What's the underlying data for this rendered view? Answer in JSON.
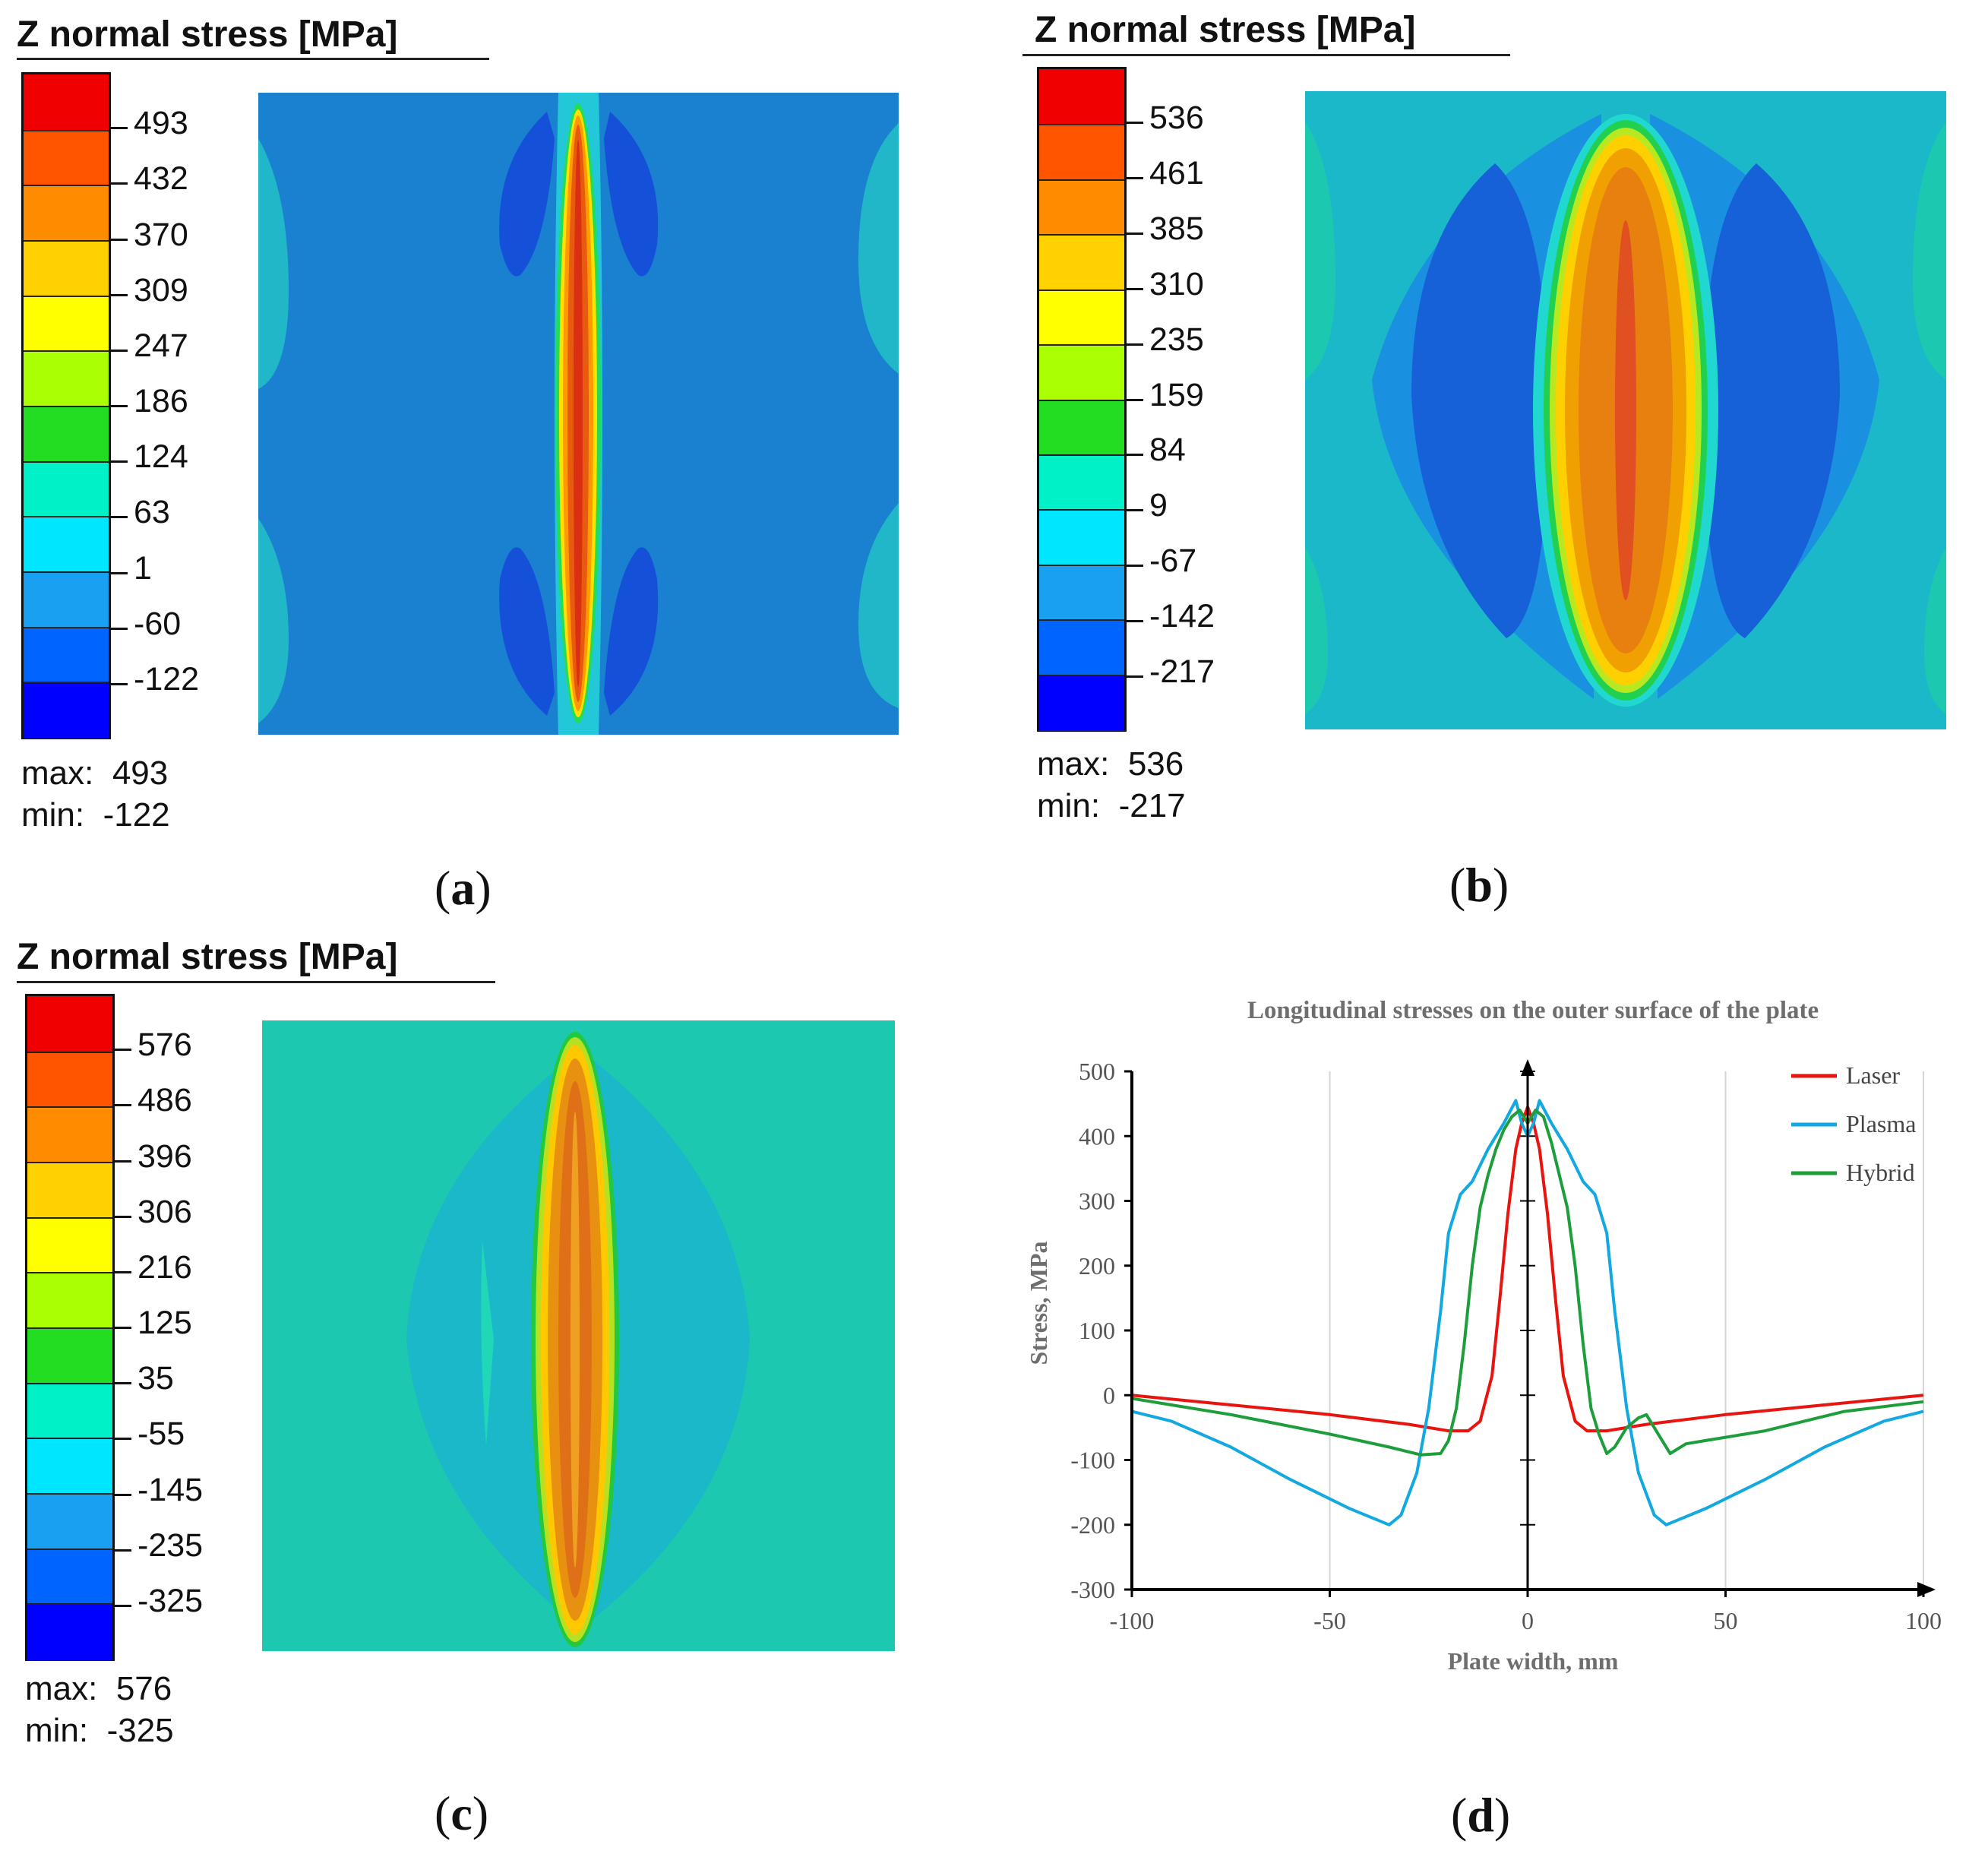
{
  "panels": [
    {
      "id": "a",
      "legend_title": "Z normal stress [MPa]",
      "colorbar_labels": [
        "493",
        "432",
        "370",
        "309",
        "247",
        "186",
        "124",
        "63",
        "1",
        "-60",
        "-122"
      ],
      "max_label": "max:",
      "max_value": "493",
      "min_label": "min:",
      "min_value": "-122",
      "caption": "a"
    },
    {
      "id": "b",
      "legend_title": "Z normal stress [MPa]",
      "colorbar_labels": [
        "536",
        "461",
        "385",
        "310",
        "235",
        "159",
        "84",
        "9",
        "-67",
        "-142",
        "-217"
      ],
      "max_label": "max:",
      "max_value": "536",
      "min_label": "min:",
      "min_value": "-217",
      "caption": "b"
    },
    {
      "id": "c",
      "legend_title": "Z normal stress [MPa]",
      "colorbar_labels": [
        "576",
        "486",
        "396",
        "306",
        "216",
        "125",
        "35",
        "-55",
        "-145",
        "-235",
        "-325"
      ],
      "max_label": "max:",
      "max_value": "576",
      "min_label": "min:",
      "min_value": "-325",
      "caption": "c"
    }
  ],
  "colorbar_colors": [
    "#f00000",
    "#ff5400",
    "#ff8c00",
    "#ffd200",
    "#ffff00",
    "#aaff00",
    "#22dd22",
    "#00f0c8",
    "#00e6ff",
    "#1aa0f0",
    "#0064ff",
    "#0000ff"
  ],
  "caption_d": "d",
  "chart_data": {
    "type": "line",
    "title": "Longitudinal stresses on the outer surface of the plate",
    "xlabel": "Plate width, mm",
    "ylabel": "Stress, MPa",
    "xlim": [
      -100,
      100
    ],
    "ylim": [
      -300,
      500
    ],
    "xticks": [
      -100,
      -50,
      0,
      50,
      100
    ],
    "yticks": [
      -300,
      -200,
      -100,
      0,
      100,
      200,
      300,
      400,
      500
    ],
    "grid": "vertical",
    "legend_position": "top-right",
    "series": [
      {
        "name": "Laser",
        "color": "#e8140f",
        "x": [
          -100,
          -75,
          -50,
          -30,
          -20,
          -15,
          -12,
          -9,
          -7,
          -5,
          -3,
          -1.5,
          0,
          1.5,
          3,
          5,
          7,
          9,
          12,
          15,
          20,
          30,
          50,
          75,
          100
        ],
        "y": [
          0,
          -15,
          -30,
          -45,
          -55,
          -55,
          -40,
          30,
          150,
          280,
          380,
          420,
          445,
          420,
          380,
          280,
          150,
          30,
          -40,
          -55,
          -55,
          -45,
          -30,
          -15,
          0
        ]
      },
      {
        "name": "Plasma",
        "color": "#12a8e0",
        "x": [
          -100,
          -90,
          -75,
          -60,
          -45,
          -35,
          -32,
          -28,
          -25,
          -22,
          -20,
          -17,
          -14,
          -10,
          -6,
          -3,
          -1.5,
          0,
          1.5,
          3,
          6,
          10,
          14,
          17,
          20,
          22,
          25,
          28,
          32,
          35,
          45,
          60,
          75,
          90,
          100
        ],
        "y": [
          -25,
          -40,
          -80,
          -130,
          -175,
          -200,
          -185,
          -120,
          -20,
          130,
          250,
          310,
          330,
          380,
          420,
          455,
          420,
          400,
          420,
          455,
          420,
          380,
          330,
          310,
          250,
          130,
          -20,
          -120,
          -185,
          -200,
          -175,
          -130,
          -80,
          -40,
          -25
        ]
      },
      {
        "name": "Hybrid",
        "color": "#1e9e3a",
        "x": [
          -100,
          -75,
          -50,
          -35,
          -27,
          -22,
          -20,
          -18,
          -16,
          -14,
          -12,
          -10,
          -8,
          -6,
          -4,
          -2,
          0,
          2,
          4,
          6,
          8,
          10,
          12,
          14,
          16,
          18,
          20,
          22,
          25,
          28,
          30,
          33,
          36,
          40,
          45,
          60,
          80,
          100
        ],
        "y": [
          -5,
          -30,
          -60,
          -80,
          -92,
          -90,
          -70,
          -20,
          80,
          200,
          290,
          340,
          380,
          410,
          430,
          440,
          420,
          440,
          430,
          390,
          340,
          290,
          200,
          80,
          -20,
          -60,
          -90,
          -80,
          -50,
          -35,
          -30,
          -60,
          -90,
          -75,
          -70,
          -55,
          -25,
          -10
        ]
      }
    ]
  }
}
